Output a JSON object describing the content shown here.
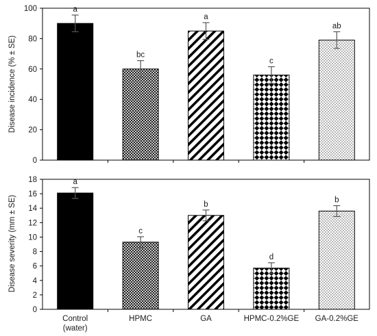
{
  "chart_data": [
    {
      "type": "bar",
      "categories": [
        "Control (water)",
        "HPMC",
        "GA",
        "HPMC-0.2%GE",
        "GA-0.2%GE"
      ],
      "values": [
        90,
        60,
        85,
        56,
        79
      ],
      "errors": [
        5.5,
        5.5,
        5.5,
        5.5,
        5.5
      ],
      "significance": [
        "a",
        "bc",
        "a",
        "c",
        "ab"
      ],
      "ylabel": "Disease incidence (% ± SE)",
      "ylim": [
        0,
        100
      ],
      "yticks": [
        0,
        20,
        40,
        60,
        80,
        100
      ],
      "grid": false
    },
    {
      "type": "bar",
      "categories": [
        "Control (water)",
        "HPMC",
        "GA",
        "HPMC-0.2%GE",
        "GA-0.2%GE"
      ],
      "values": [
        16.1,
        9.3,
        13.0,
        5.7,
        13.6
      ],
      "errors": [
        0.75,
        0.75,
        0.75,
        0.75,
        0.75
      ],
      "significance": [
        "a",
        "c",
        "b",
        "d",
        "b"
      ],
      "ylabel": "Disease severity (mm ± SE)",
      "ylim": [
        0,
        18
      ],
      "yticks": [
        0,
        2,
        4,
        6,
        8,
        10,
        12,
        14,
        16,
        18
      ],
      "grid": false
    }
  ],
  "x_tick_labels": [
    [
      "Control",
      "(water)"
    ],
    [
      "HPMC"
    ],
    [
      "GA"
    ],
    [
      "HPMC-0.2%GE"
    ],
    [
      "GA-0.2%GE"
    ]
  ],
  "bar_patterns": [
    "solid",
    "crosshatch",
    "diagonal",
    "checker",
    "dots"
  ],
  "colors": {
    "axis": "#000000",
    "bar_ink": "#000000",
    "bar_fill": "#ffffff",
    "text": "#1a1a1a",
    "errorbar": "#555555"
  }
}
